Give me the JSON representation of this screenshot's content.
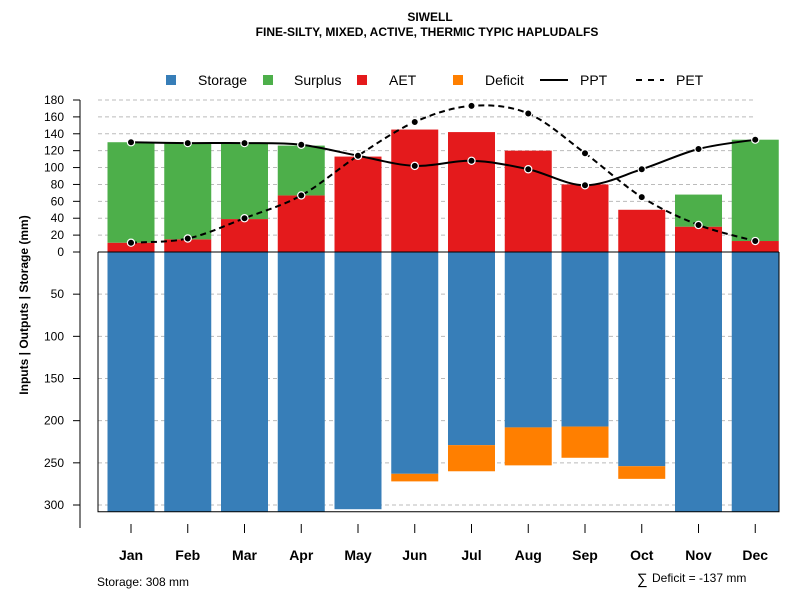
{
  "chart_data": {
    "type": "bar",
    "title": "SIWELL",
    "subtitle": "FINE-SILTY, MIXED, ACTIVE, THERMIC TYPIC HAPLUDALFS",
    "ylabel": "Inputs | Outputs | Storage     (mm)",
    "categories": [
      "Jan",
      "Feb",
      "Mar",
      "Apr",
      "May",
      "Jun",
      "Jul",
      "Aug",
      "Sep",
      "Oct",
      "Nov",
      "Dec"
    ],
    "upper_ticks": [
      0,
      20,
      40,
      60,
      80,
      100,
      120,
      140,
      160,
      180
    ],
    "lower_ticks": [
      50,
      100,
      150,
      200,
      250,
      300
    ],
    "ylim_upper": [
      0,
      180
    ],
    "ylim_lower": [
      0,
      308
    ],
    "series": [
      {
        "name": "AET",
        "color": "#E41A1C",
        "values": [
          11,
          15,
          39,
          67,
          113,
          145,
          142,
          120,
          80,
          50,
          30,
          13
        ]
      },
      {
        "name": "Surplus",
        "color": "#4DAF4A",
        "values": [
          119,
          114,
          89,
          59,
          0,
          0,
          0,
          0,
          0,
          0,
          38,
          120
        ]
      },
      {
        "name": "Storage",
        "color": "#377EB8",
        "values": [
          308,
          308,
          308,
          308,
          305,
          263,
          229,
          208,
          207,
          254,
          308,
          308
        ]
      },
      {
        "name": "Deficit",
        "color": "#FF7F00",
        "values": [
          0,
          0,
          0,
          0,
          0,
          9,
          31,
          45,
          37,
          15,
          0,
          0
        ]
      },
      {
        "name": "PPT",
        "color": "#000000",
        "values": [
          130,
          129,
          129,
          127,
          114,
          102,
          108,
          98,
          79,
          98,
          122,
          133
        ]
      },
      {
        "name": "PET",
        "color": "#000000",
        "values": [
          11,
          16,
          40,
          67,
          114,
          154,
          173,
          164,
          117,
          65,
          32,
          13
        ]
      }
    ],
    "legend": [
      "Storage",
      "Surplus",
      "AET",
      "Deficit",
      "PPT",
      "PET"
    ],
    "legend_placement": "top",
    "storage_note": "Storage: 308 mm",
    "deficit_note": "Deficit = -137 mm",
    "deficit_symbol": "∑"
  }
}
